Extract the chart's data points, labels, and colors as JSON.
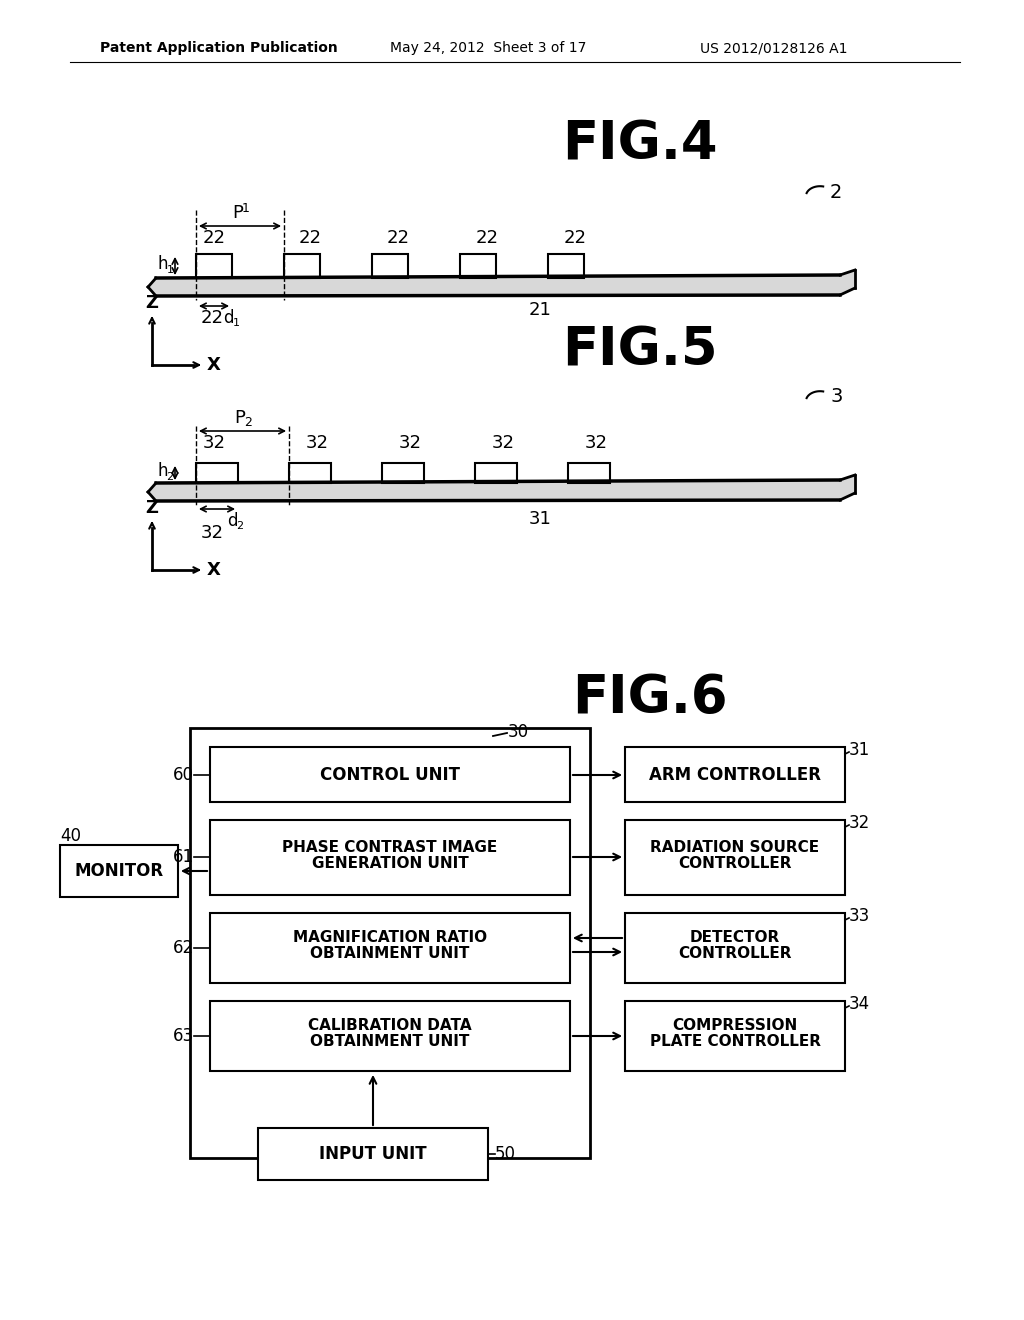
{
  "bg_color": "#ffffff",
  "header_left": "Patent Application Publication",
  "header_mid": "May 24, 2012  Sheet 3 of 17",
  "header_right": "US 2012/0128126 A1",
  "fig4_title": "FIG.4",
  "fig5_title": "FIG.5",
  "fig6_title": "FIG.6",
  "fig4_ref": "2",
  "fig5_ref": "3"
}
